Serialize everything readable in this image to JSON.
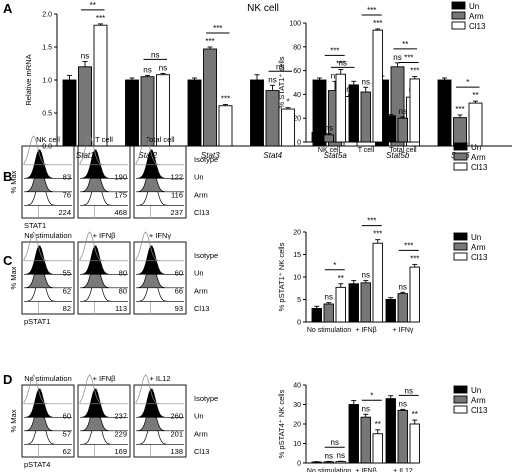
{
  "panels": {
    "A": {
      "letter": "A",
      "title": "NK cell"
    },
    "B": {
      "letter": "B"
    },
    "C": {
      "letter": "C"
    },
    "D": {
      "letter": "D"
    }
  },
  "legend": [
    "Un",
    "Arm",
    "Cl13"
  ],
  "colors": {
    "Un": "#000000",
    "Arm": "#777777",
    "Cl13": "#ffffff"
  },
  "flow": {
    "B": {
      "ylabel": "% Max",
      "xlabel": "STAT1",
      "cols": [
        "NK cell",
        "T cell",
        "Total cell"
      ],
      "row_labels": [
        "Isotype",
        "Un",
        "Arm",
        "Cl13"
      ],
      "values": [
        [
          "83",
          "76",
          "224"
        ],
        [
          "190",
          "175",
          "468"
        ],
        [
          "122",
          "116",
          "237"
        ]
      ]
    },
    "C": {
      "ylabel": "% Max",
      "xlabel": "pSTAT1",
      "cols": [
        "No stimulation",
        "+ IFNβ",
        "+ IFNγ"
      ],
      "row_labels": [
        "Isotype",
        "Un",
        "Arm",
        "Cl13"
      ],
      "values": [
        [
          "55",
          "62",
          "82"
        ],
        [
          "80",
          "80",
          "113"
        ],
        [
          "60",
          "66",
          "93"
        ]
      ]
    },
    "D": {
      "ylabel": "% Max",
      "xlabel": "pSTAT4",
      "cols": [
        "No stimulation",
        "+ IFNβ",
        "+ IL12"
      ],
      "row_labels": [
        "Isotype",
        "Un",
        "Arm",
        "Cl13"
      ],
      "values": [
        [
          "60",
          "57",
          "62"
        ],
        [
          "237",
          "229",
          "169"
        ],
        [
          "260",
          "201",
          "138"
        ]
      ]
    }
  },
  "chart_data": [
    {
      "id": "A",
      "type": "bar",
      "ylabel": "Relative mRNA",
      "ylim": [
        0,
        2.0
      ],
      "yticks": [
        "0.0",
        "0.5",
        "1.0",
        "1.5",
        "2.0"
      ],
      "categories": [
        "Stat1",
        "Stat2",
        "Stat3",
        "Stat4",
        "Stat5a",
        "Stat5b",
        "Stat6"
      ],
      "series": [
        {
          "name": "Un",
          "values": [
            1.0,
            1.0,
            1.0,
            1.0,
            1.0,
            1.0,
            1.0
          ],
          "err": [
            0.07,
            0.03,
            0.03,
            0.08,
            0.03,
            0.06,
            0.03
          ]
        },
        {
          "name": "Arm",
          "values": [
            1.2,
            1.05,
            1.47,
            0.84,
            0.84,
            1.2,
            0.43
          ],
          "err": [
            0.08,
            0.02,
            0.03,
            0.08,
            0.14,
            0.06,
            0.04
          ]
        },
        {
          "name": "Cl13",
          "values": [
            1.83,
            1.08,
            0.61,
            0.56,
            0.75,
            0.74,
            0.65
          ],
          "err": [
            0.02,
            0.02,
            0.02,
            0.02,
            0.02,
            0.03,
            0.03
          ]
        }
      ],
      "marks": [
        [
          "",
          "ns",
          "***"
        ],
        [
          "",
          "ns",
          "ns"
        ],
        [
          "",
          "***",
          "***"
        ],
        [
          "",
          "ns",
          "*"
        ],
        [
          "",
          "ns",
          "ns"
        ],
        [
          "",
          "ns",
          "ns"
        ],
        [
          "",
          "***",
          "**"
        ]
      ],
      "brackets": [
        {
          "cat": 0,
          "a": 1,
          "b": 2,
          "label": "**"
        },
        {
          "cat": 1,
          "a": 1,
          "b": 2,
          "label": "ns"
        },
        {
          "cat": 2,
          "a": 1,
          "b": 2,
          "label": "***"
        },
        {
          "cat": 3,
          "a": 1,
          "b": 2,
          "label": "ns"
        },
        {
          "cat": 4,
          "a": 1,
          "b": 2,
          "label": "ns"
        },
        {
          "cat": 5,
          "a": 1,
          "b": 2,
          "label": "**"
        },
        {
          "cat": 6,
          "a": 1,
          "b": 2,
          "label": "*"
        }
      ]
    },
    {
      "id": "B",
      "type": "bar",
      "ylabel": "% STAT1⁺ cells",
      "ylim": [
        0,
        100
      ],
      "yticks": [
        "0",
        "20",
        "40",
        "60",
        "80",
        "100"
      ],
      "categories": [
        "NK cell",
        "T cell",
        "Total cell"
      ],
      "series": [
        {
          "name": "Un",
          "values": [
            8,
            48,
            22
          ],
          "err": [
            1,
            3,
            1
          ]
        },
        {
          "name": "Arm",
          "values": [
            6,
            42,
            20
          ],
          "err": [
            1,
            4,
            1
          ]
        },
        {
          "name": "Cl13",
          "values": [
            57,
            94,
            53
          ],
          "err": [
            4,
            1,
            2
          ]
        }
      ],
      "marks": [
        [
          "",
          "ns",
          "***"
        ],
        [
          "",
          "ns",
          "***"
        ],
        [
          "",
          "ns",
          "***"
        ]
      ],
      "brackets": [
        {
          "cat": 0,
          "a": 1,
          "b": 2,
          "label": "***"
        },
        {
          "cat": 1,
          "a": 1,
          "b": 2,
          "label": "***"
        },
        {
          "cat": 2,
          "a": 1,
          "b": 2,
          "label": "***"
        }
      ]
    },
    {
      "id": "C",
      "type": "bar",
      "ylabel": "% pSTAT1⁺ NK cells",
      "ylim": [
        0,
        20
      ],
      "yticks": [
        "0",
        "5",
        "10",
        "15",
        "20"
      ],
      "categories": [
        "No stimulation",
        "+ IFNβ",
        "+ IFNγ"
      ],
      "series": [
        {
          "name": "Un",
          "values": [
            3,
            8.5,
            5
          ],
          "err": [
            0.5,
            0.7,
            0.4
          ]
        },
        {
          "name": "Arm",
          "values": [
            4,
            8.7,
            6.3
          ],
          "err": [
            0.3,
            0.5,
            0.3
          ]
        },
        {
          "name": "Cl13",
          "values": [
            7.7,
            17.5,
            12.2
          ],
          "err": [
            0.8,
            0.8,
            0.6
          ]
        }
      ],
      "marks": [
        [
          "",
          "ns",
          "**"
        ],
        [
          "",
          "ns",
          "***"
        ],
        [
          "",
          "ns",
          "***"
        ]
      ],
      "brackets": [
        {
          "cat": 0,
          "a": 1,
          "b": 2,
          "label": "*"
        },
        {
          "cat": 1,
          "a": 1,
          "b": 2,
          "label": "***"
        },
        {
          "cat": 2,
          "a": 1,
          "b": 2,
          "label": "***"
        }
      ]
    },
    {
      "id": "D",
      "type": "bar",
      "ylabel": "% pSTAT4⁺ NK cells",
      "ylim": [
        0,
        40
      ],
      "yticks": [
        "0",
        "10",
        "20",
        "30",
        "40"
      ],
      "categories": [
        "No stimulation",
        "+ IFNβ",
        "+ IL12"
      ],
      "series": [
        {
          "name": "Un",
          "values": [
            0.5,
            30,
            33
          ],
          "err": [
            0.2,
            2,
            1.5
          ]
        },
        {
          "name": "Arm",
          "values": [
            0.6,
            23.5,
            27
          ],
          "err": [
            0.2,
            1.5,
            0.5
          ]
        },
        {
          "name": "Cl13",
          "values": [
            0.7,
            15,
            20
          ],
          "err": [
            0.2,
            2,
            2
          ]
        }
      ],
      "marks": [
        [
          "",
          "ns",
          "ns"
        ],
        [
          "",
          "ns",
          "**"
        ],
        [
          "",
          "ns",
          "**"
        ]
      ],
      "brackets": [
        {
          "cat": 0,
          "a": 1,
          "b": 2,
          "label": "ns"
        },
        {
          "cat": 1,
          "a": 1,
          "b": 2,
          "label": "*"
        },
        {
          "cat": 2,
          "a": 1,
          "b": 2,
          "label": "ns"
        }
      ]
    }
  ]
}
